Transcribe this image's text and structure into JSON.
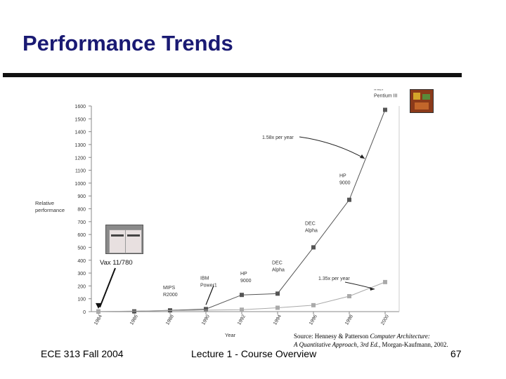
{
  "slide": {
    "title": "Performance Trends",
    "footer_left": "ECE 313 Fall 2004",
    "footer_center": "Lecture 1 - Course Overview",
    "page_number": "67",
    "source_line1_prefix": "Source: Hennesy & Patterson ",
    "source_line1_italic": "Computer Architecture:",
    "source_line2_italic": "A Quantitative Approach, 3rd Ed.",
    "source_line2_suffix": ", Morgan-Kaufmann, 2002.",
    "vax_label": "Vax 11/780",
    "colors": {
      "title": "#1a1a73",
      "rule": "#111111",
      "upper_series": "#555555",
      "lower_series": "#aaaaaa"
    }
  },
  "chart_data": {
    "type": "line",
    "xlabel": "Year",
    "ylabel": "Relative performance",
    "ylim": [
      0,
      1600
    ],
    "yticks": [
      0,
      100,
      200,
      300,
      400,
      500,
      600,
      700,
      800,
      900,
      1000,
      1100,
      1200,
      1300,
      1400,
      1500,
      1600
    ],
    "xticks": [
      "1984",
      "1986",
      "1988",
      "1990",
      "1992",
      "1994",
      "1996",
      "1998",
      "2000"
    ],
    "xlim": [
      1984,
      2001
    ],
    "series": [
      {
        "values": [
          {
            "x": 1984,
            "y": 1
          },
          {
            "x": 1986,
            "y": 2
          },
          {
            "x": 1988,
            "y": 10
          },
          {
            "x": 1990,
            "y": 20
          },
          {
            "x": 1992,
            "y": 130
          },
          {
            "x": 1994,
            "y": 140
          },
          {
            "x": 1996,
            "y": 500
          },
          {
            "x": 1998,
            "y": 870
          },
          {
            "x": 2000,
            "y": 1570
          }
        ]
      },
      {
        "values": [
          {
            "x": 1984,
            "y": 1
          },
          {
            "x": 1992,
            "y": 15
          },
          {
            "x": 1994,
            "y": 30
          },
          {
            "x": 1996,
            "y": 50
          },
          {
            "x": 1998,
            "y": 120
          },
          {
            "x": 2000,
            "y": 230
          }
        ]
      }
    ],
    "point_labels": [
      {
        "text": [
          "MIPS",
          "R2000"
        ],
        "x": 1988
      },
      {
        "text": [
          "IBM",
          "Power1"
        ],
        "x": 1990
      },
      {
        "text": [
          "HP",
          "9000"
        ],
        "x": 1992
      },
      {
        "text": [
          "DEC",
          "Alpha"
        ],
        "x": 1994
      },
      {
        "text": [
          "DEC",
          "Alpha"
        ],
        "x": 1996
      },
      {
        "text": [
          "HP",
          "9000"
        ],
        "x": 1998
      },
      {
        "text": [
          "Intel",
          "Pentium III"
        ],
        "x": 2000
      }
    ],
    "annotations": [
      "1.58x per year",
      "1.35x per year"
    ],
    "grid": false,
    "legend": false
  }
}
